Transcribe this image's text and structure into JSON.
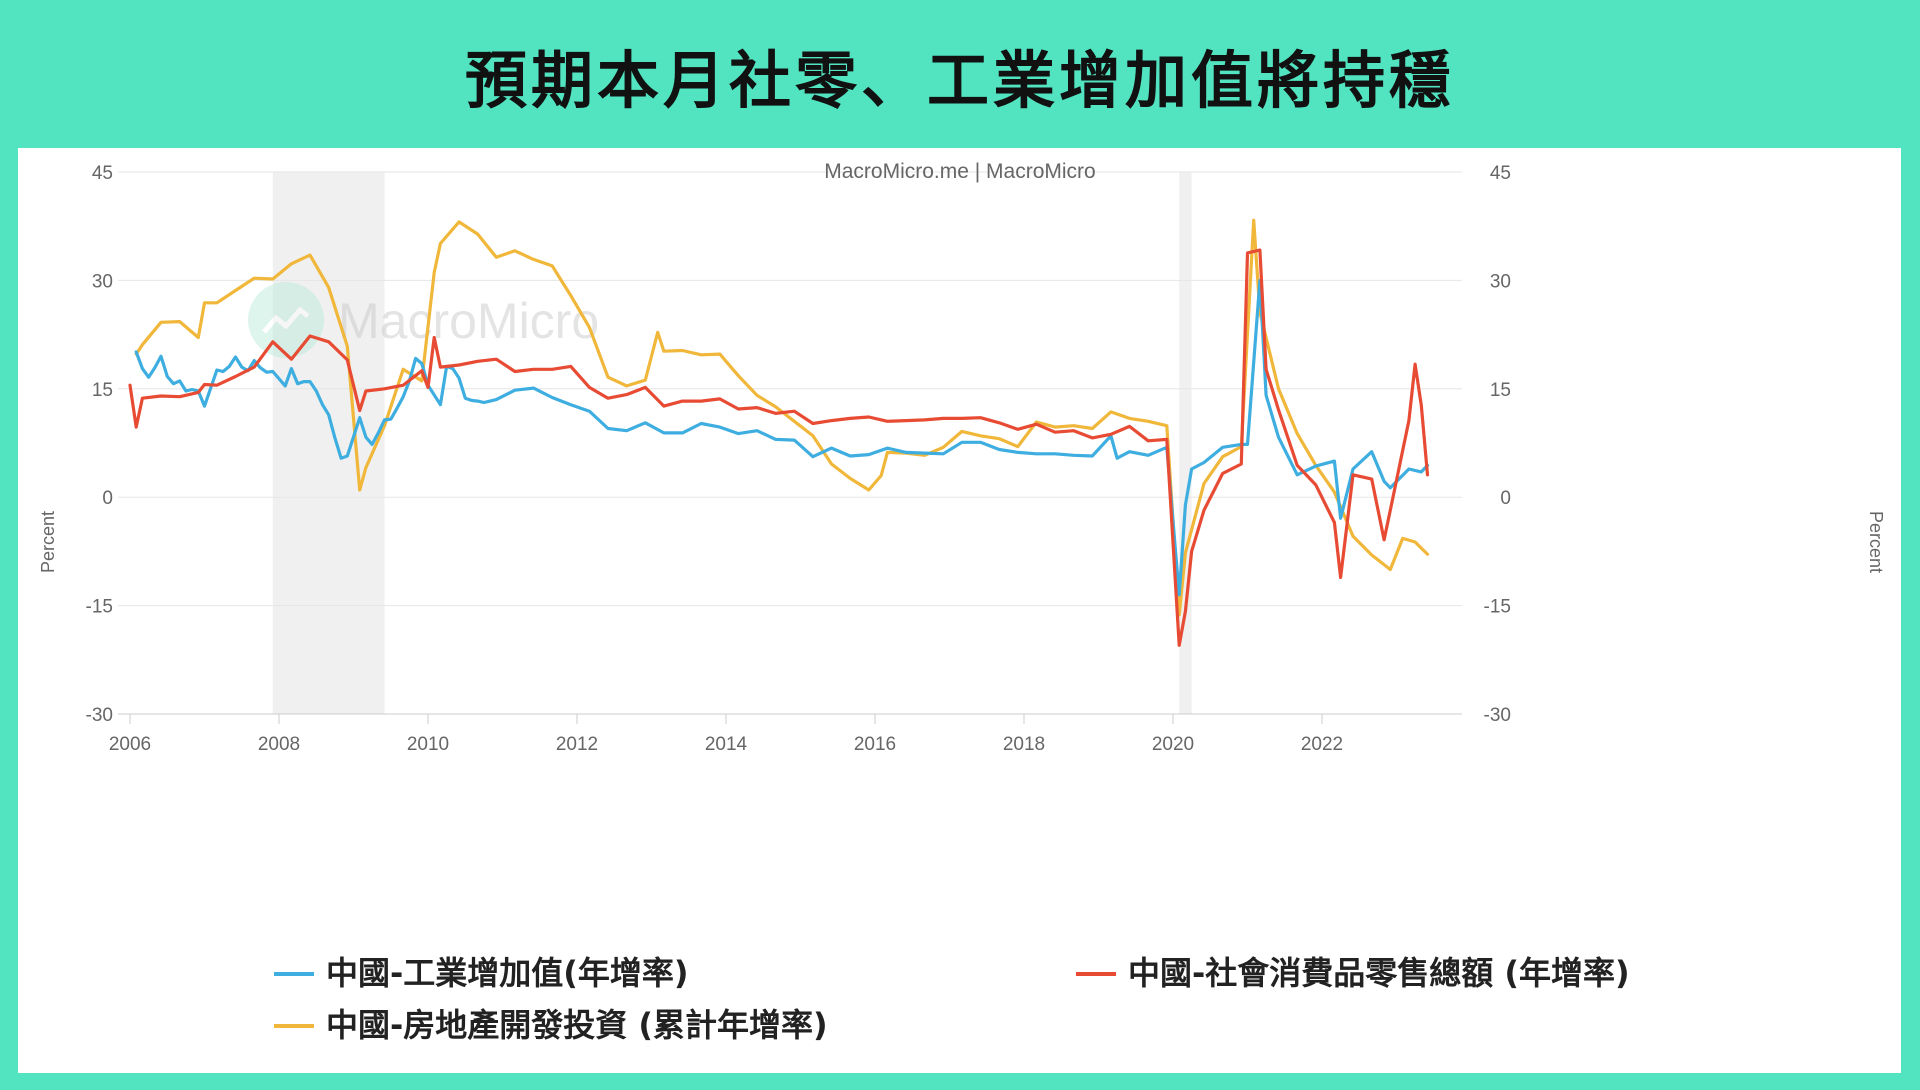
{
  "title": "預期本月社零、工業增加值將持穩",
  "source": "MacroMicro.me | MacroMicro",
  "watermark": "MacroMicro",
  "chart_data": {
    "type": "line",
    "ylabel_left": "Percent",
    "ylabel_right": "Percent",
    "ylim": [
      -30,
      45
    ],
    "yticks": [
      "45",
      "30",
      "15",
      "0",
      "-15",
      "-30"
    ],
    "xticks": [
      "2006",
      "2008",
      "2010",
      "2012",
      "2014",
      "2016",
      "2018",
      "2020",
      "2022"
    ],
    "shaded_periods": [
      [
        "2007-12",
        "2009-06"
      ],
      [
        "2020-02",
        "2020-04"
      ]
    ],
    "series": [
      {
        "name": "中國-工業增加值(年增率)",
        "color": "#3eaee0",
        "x": [
          "2006-02",
          "2006-03",
          "2006-04",
          "2006-05",
          "2006-06",
          "2006-07",
          "2006-08",
          "2006-09",
          "2006-10",
          "2006-11",
          "2006-12",
          "2007-01",
          "2007-03",
          "2007-04",
          "2007-05",
          "2007-06",
          "2007-07",
          "2007-08",
          "2007-09",
          "2007-10",
          "2007-11",
          "2007-12",
          "2008-02",
          "2008-03",
          "2008-04",
          "2008-05",
          "2008-06",
          "2008-07",
          "2008-08",
          "2008-09",
          "2008-10",
          "2008-11",
          "2008-12",
          "2009-02",
          "2009-03",
          "2009-04",
          "2009-05",
          "2009-06",
          "2009-07",
          "2009-08",
          "2009-09",
          "2009-10",
          "2009-11",
          "2009-12",
          "2010-01",
          "2010-03",
          "2010-04",
          "2010-05",
          "2010-06",
          "2010-07",
          "2010-08",
          "2010-09",
          "2010-10",
          "2010-11",
          "2010-12",
          "2011-03",
          "2011-06",
          "2011-09",
          "2011-12",
          "2012-03",
          "2012-06",
          "2012-09",
          "2012-12",
          "2013-03",
          "2013-06",
          "2013-09",
          "2013-12",
          "2014-03",
          "2014-06",
          "2014-09",
          "2014-12",
          "2015-03",
          "2015-06",
          "2015-09",
          "2015-12",
          "2016-03",
          "2016-06",
          "2016-09",
          "2016-12",
          "2017-03",
          "2017-06",
          "2017-09",
          "2017-12",
          "2018-03",
          "2018-06",
          "2018-09",
          "2018-12",
          "2019-03",
          "2019-04",
          "2019-06",
          "2019-09",
          "2019-12",
          "2020-02",
          "2020-03",
          "2020-04",
          "2020-06",
          "2020-09",
          "2020-12",
          "2021-01",
          "2021-03",
          "2021-04",
          "2021-06",
          "2021-09",
          "2021-12",
          "2022-03",
          "2022-04",
          "2022-06",
          "2022-09",
          "2022-11",
          "2022-12",
          "2023-03",
          "2023-05",
          "2023-06"
        ],
        "values": [
          20.1,
          17.8,
          16.6,
          17.9,
          19.5,
          16.7,
          15.7,
          16.1,
          14.7,
          14.9,
          14.7,
          12.6,
          17.6,
          17.4,
          18.1,
          19.4,
          18.0,
          17.5,
          18.9,
          17.9,
          17.3,
          17.4,
          15.4,
          17.8,
          15.7,
          16.0,
          16.0,
          14.7,
          12.8,
          11.4,
          8.2,
          5.4,
          5.7,
          11.0,
          8.3,
          7.3,
          8.9,
          10.7,
          10.8,
          12.3,
          13.9,
          16.1,
          19.2,
          18.5,
          15.5,
          12.8,
          18.1,
          17.8,
          16.5,
          13.7,
          13.4,
          13.3,
          13.1,
          13.3,
          13.5,
          14.8,
          15.1,
          13.8,
          12.8,
          11.9,
          9.5,
          9.2,
          10.3,
          8.9,
          8.9,
          10.2,
          9.7,
          8.8,
          9.2,
          8.0,
          7.9,
          5.6,
          6.8,
          5.7,
          5.9,
          6.8,
          6.2,
          6.1,
          6.0,
          7.6,
          7.6,
          6.6,
          6.2,
          6.0,
          6.0,
          5.8,
          5.7,
          8.5,
          5.4,
          6.3,
          5.8,
          6.9,
          -13.5,
          -1.1,
          3.9,
          4.8,
          6.9,
          7.3,
          7.3,
          30.0,
          14.1,
          8.3,
          3.1,
          4.3,
          5.0,
          -2.9,
          3.9,
          6.3,
          2.2,
          1.3,
          3.9,
          3.5,
          4.4
        ]
      },
      {
        "name": "中國-社會消費品零售總額 (年增率)",
        "color": "#e84b34",
        "x": [
          "2006-01",
          "2006-02",
          "2006-03",
          "2006-06",
          "2006-09",
          "2006-12",
          "2007-01",
          "2007-03",
          "2007-06",
          "2007-09",
          "2007-12",
          "2008-03",
          "2008-06",
          "2008-09",
          "2008-12",
          "2009-02",
          "2009-03",
          "2009-06",
          "2009-09",
          "2009-12",
          "2010-01",
          "2010-02",
          "2010-03",
          "2010-06",
          "2010-09",
          "2010-12",
          "2011-03",
          "2011-06",
          "2011-09",
          "2011-12",
          "2012-03",
          "2012-06",
          "2012-09",
          "2012-12",
          "2013-03",
          "2013-06",
          "2013-09",
          "2013-12",
          "2014-03",
          "2014-06",
          "2014-09",
          "2014-12",
          "2015-03",
          "2015-06",
          "2015-09",
          "2015-12",
          "2016-03",
          "2016-06",
          "2016-09",
          "2016-12",
          "2017-03",
          "2017-06",
          "2017-09",
          "2017-12",
          "2018-03",
          "2018-06",
          "2018-09",
          "2018-12",
          "2019-03",
          "2019-06",
          "2019-09",
          "2019-12",
          "2020-02",
          "2020-03",
          "2020-04",
          "2020-06",
          "2020-09",
          "2020-12",
          "2021-01",
          "2021-03",
          "2021-04",
          "2021-06",
          "2021-09",
          "2021-12",
          "2022-03",
          "2022-04",
          "2022-06",
          "2022-09",
          "2022-11",
          "2022-12",
          "2023-03",
          "2023-04",
          "2023-05",
          "2023-06"
        ],
        "values": [
          15.5,
          9.7,
          13.7,
          14.0,
          13.9,
          14.5,
          15.6,
          15.5,
          16.7,
          18.0,
          21.5,
          19.1,
          22.3,
          21.5,
          19.0,
          12.0,
          14.7,
          15.0,
          15.5,
          17.5,
          15.2,
          22.1,
          18.0,
          18.3,
          18.8,
          19.1,
          17.4,
          17.7,
          17.7,
          18.1,
          15.2,
          13.7,
          14.2,
          15.2,
          12.6,
          13.3,
          13.3,
          13.6,
          12.2,
          12.4,
          11.6,
          11.9,
          10.2,
          10.6,
          10.9,
          11.1,
          10.5,
          10.6,
          10.7,
          10.9,
          10.9,
          11.0,
          10.3,
          9.4,
          10.1,
          9.0,
          9.2,
          8.2,
          8.7,
          9.8,
          7.8,
          8.0,
          -20.5,
          -15.8,
          -7.5,
          -1.8,
          3.3,
          4.6,
          33.8,
          34.2,
          17.7,
          12.1,
          4.4,
          1.7,
          -3.5,
          -11.1,
          3.1,
          2.5,
          -5.9,
          -1.8,
          10.6,
          18.4,
          12.7,
          3.1
        ]
      },
      {
        "name": "中國-房地產開發投資 (累計年增率)",
        "color": "#f0b73a",
        "x": [
          "2006-02",
          "2006-03",
          "2006-06",
          "2006-09",
          "2006-12",
          "2007-01",
          "2007-03",
          "2007-06",
          "2007-09",
          "2007-12",
          "2008-03",
          "2008-06",
          "2008-09",
          "2008-12",
          "2009-02",
          "2009-03",
          "2009-06",
          "2009-09",
          "2009-12",
          "2010-02",
          "2010-03",
          "2010-06",
          "2010-09",
          "2010-12",
          "2011-03",
          "2011-06",
          "2011-09",
          "2011-12",
          "2012-03",
          "2012-06",
          "2012-09",
          "2012-12",
          "2013-02",
          "2013-03",
          "2013-06",
          "2013-09",
          "2013-12",
          "2014-03",
          "2014-06",
          "2014-09",
          "2014-12",
          "2015-03",
          "2015-06",
          "2015-09",
          "2015-12",
          "2016-02",
          "2016-03",
          "2016-06",
          "2016-09",
          "2016-12",
          "2017-03",
          "2017-06",
          "2017-09",
          "2017-12",
          "2018-03",
          "2018-06",
          "2018-09",
          "2018-12",
          "2019-03",
          "2019-06",
          "2019-09",
          "2019-12",
          "2020-02",
          "2020-03",
          "2020-06",
          "2020-09",
          "2020-12",
          "2021-02",
          "2021-03",
          "2021-06",
          "2021-09",
          "2021-12",
          "2022-03",
          "2022-06",
          "2022-09",
          "2022-12",
          "2023-02",
          "2023-04",
          "2023-06"
        ],
        "values": [
          19.8,
          21.1,
          24.2,
          24.3,
          22.1,
          26.9,
          26.9,
          28.6,
          30.3,
          30.2,
          32.3,
          33.5,
          29.0,
          20.9,
          1.0,
          4.1,
          9.9,
          17.7,
          16.1,
          31.1,
          35.1,
          38.1,
          36.4,
          33.2,
          34.1,
          32.9,
          32.0,
          27.9,
          23.5,
          16.6,
          15.4,
          16.2,
          22.8,
          20.2,
          20.3,
          19.7,
          19.8,
          16.8,
          14.1,
          12.5,
          10.5,
          8.5,
          4.6,
          2.6,
          1.0,
          3.0,
          6.2,
          6.1,
          5.8,
          6.9,
          9.1,
          8.5,
          8.1,
          7.0,
          10.4,
          9.7,
          9.9,
          9.5,
          11.8,
          10.9,
          10.5,
          9.9,
          -16.3,
          -7.7,
          1.9,
          5.6,
          7.0,
          38.3,
          25.6,
          15.0,
          8.8,
          4.4,
          0.7,
          -5.4,
          -8.0,
          -10.0,
          -5.7,
          -6.2,
          -7.9
        ]
      }
    ]
  }
}
